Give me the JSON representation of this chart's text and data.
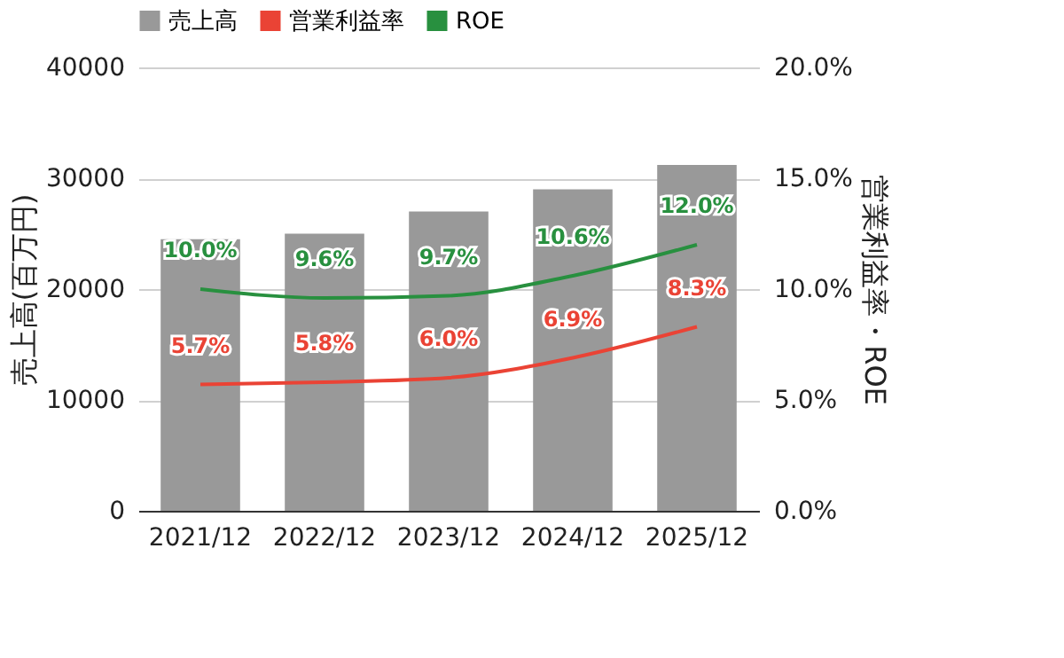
{
  "chart_data": {
    "type": "bar",
    "categories": [
      "2021/12",
      "2022/12",
      "2023/12",
      "2024/12",
      "2025/12"
    ],
    "ylabel": "売上高(百万円)",
    "y2label": "営業利益率・ROE",
    "ylim": [
      0,
      40000
    ],
    "yticks": [
      0,
      10000,
      20000,
      30000,
      40000
    ],
    "y2lim": [
      0,
      20
    ],
    "y2ticks": [
      {
        "value": 0,
        "label": "0.0%"
      },
      {
        "value": 5,
        "label": "5.0%"
      },
      {
        "value": 10,
        "label": "10.0%"
      },
      {
        "value": 15,
        "label": "15.0%"
      },
      {
        "value": 20,
        "label": "20.0%"
      }
    ],
    "grid": "y",
    "legend": "top",
    "series": [
      {
        "name": "売上高",
        "color": "#999999",
        "values": [
          24500,
          25000,
          27000,
          29000,
          31200
        ]
      },
      {
        "name": "営業利益率",
        "type": "line",
        "axis": "y2",
        "color": "#ea4335",
        "values": [
          5.7,
          5.8,
          6.0,
          6.9,
          8.3
        ],
        "value_labels": [
          "5.7%",
          "5.8%",
          "6.0%",
          "6.9%",
          "8.3%"
        ]
      },
      {
        "name": "ROE",
        "type": "line",
        "axis": "y2",
        "color": "#28903f",
        "values": [
          10.0,
          9.6,
          9.7,
          10.6,
          12.0
        ],
        "value_labels": [
          "10.0%",
          "9.6%",
          "9.7%",
          "10.6%",
          "12.0%"
        ]
      }
    ]
  }
}
